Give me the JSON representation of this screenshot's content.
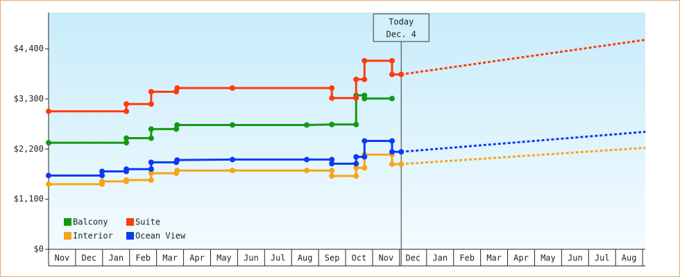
{
  "chart_data": {
    "type": "step-line",
    "xlim": [
      0,
      22.1
    ],
    "ylim": [
      0,
      5200
    ],
    "yticks": [
      {
        "value": 0,
        "label": "$0"
      },
      {
        "value": 1100,
        "label": "$1,100"
      },
      {
        "value": 2200,
        "label": "$2,200"
      },
      {
        "value": 3300,
        "label": "$3,300"
      },
      {
        "value": 4400,
        "label": "$4,400"
      }
    ],
    "xticks": [
      {
        "value": 0.5,
        "label": "Nov"
      },
      {
        "value": 1.5,
        "label": "Dec"
      },
      {
        "value": 2.5,
        "label": "Jan"
      },
      {
        "value": 3.5,
        "label": "Feb"
      },
      {
        "value": 4.5,
        "label": "Mar"
      },
      {
        "value": 5.5,
        "label": "Apr"
      },
      {
        "value": 6.5,
        "label": "May"
      },
      {
        "value": 7.5,
        "label": "Jun"
      },
      {
        "value": 8.5,
        "label": "Jul"
      },
      {
        "value": 9.5,
        "label": "Aug"
      },
      {
        "value": 10.5,
        "label": "Sep"
      },
      {
        "value": 11.5,
        "label": "Oct"
      },
      {
        "value": 12.5,
        "label": "Nov"
      },
      {
        "value": 13.5,
        "label": "Dec"
      },
      {
        "value": 14.5,
        "label": "Jan"
      },
      {
        "value": 15.5,
        "label": "Feb"
      },
      {
        "value": 16.5,
        "label": "Mar"
      },
      {
        "value": 17.5,
        "label": "Apr"
      },
      {
        "value": 18.5,
        "label": "May"
      },
      {
        "value": 19.5,
        "label": "Jun"
      },
      {
        "value": 20.5,
        "label": "Jul"
      },
      {
        "value": 21.5,
        "label": "Aug"
      }
    ],
    "legend": "lower left",
    "annotation": {
      "x": 13.06,
      "lines": [
        "Today",
        "Dec. 4"
      ]
    },
    "series": [
      {
        "name": "Balcony",
        "color": "#129912",
        "x": [
          0,
          2.88,
          2.88,
          3.8,
          3.8,
          4.73,
          4.76,
          6.81,
          9.56,
          10.49,
          11.39,
          11.39,
          11.7,
          11.7,
          12.72
        ],
        "values": [
          2340,
          2340,
          2440,
          2440,
          2640,
          2640,
          2730,
          2730,
          2730,
          2740,
          2740,
          3380,
          3380,
          3310,
          3310
        ]
      },
      {
        "name": "Suite",
        "color": "#ff3a0a",
        "x": [
          0,
          2.88,
          2.88,
          3.8,
          3.8,
          4.73,
          4.76,
          6.81,
          10.49,
          10.49,
          11.39,
          11.39,
          11.7,
          11.7,
          12.72,
          12.72,
          13.06
        ],
        "values": [
          3030,
          3030,
          3190,
          3190,
          3460,
          3460,
          3540,
          3540,
          3540,
          3320,
          3320,
          3730,
          3730,
          4140,
          4140,
          3840,
          3840
        ],
        "forecast_x": [
          13.06,
          22.11
        ],
        "forecast_values": [
          3840,
          4600
        ]
      },
      {
        "name": "Interior",
        "color": "#f7a418",
        "x": [
          0,
          1.98,
          1.98,
          2.88,
          2.88,
          3.8,
          3.8,
          4.73,
          4.76,
          6.81,
          9.56,
          10.49,
          10.49,
          11.39,
          11.39,
          11.7,
          11.7,
          12.72,
          12.72,
          13.06
        ],
        "values": [
          1430,
          1430,
          1490,
          1490,
          1520,
          1520,
          1670,
          1670,
          1730,
          1730,
          1730,
          1730,
          1610,
          1610,
          1790,
          1790,
          2080,
          2080,
          1870,
          1870
        ],
        "forecast_x": [
          13.06,
          22.11
        ],
        "forecast_values": [
          1870,
          2230
        ]
      },
      {
        "name": "Ocean View",
        "color": "#0a3af5",
        "x": [
          0,
          1.98,
          1.98,
          2.88,
          2.88,
          3.8,
          3.8,
          4.73,
          4.76,
          6.81,
          9.56,
          10.49,
          10.49,
          11.39,
          11.39,
          11.7,
          11.7,
          12.72,
          12.72,
          13.06
        ],
        "values": [
          1620,
          1620,
          1710,
          1710,
          1760,
          1760,
          1910,
          1910,
          1960,
          1970,
          1970,
          1970,
          1880,
          1880,
          2030,
          2030,
          2380,
          2380,
          2140,
          2140
        ],
        "forecast_x": [
          13.06,
          22.11
        ],
        "forecast_values": [
          2140,
          2580
        ]
      }
    ]
  }
}
